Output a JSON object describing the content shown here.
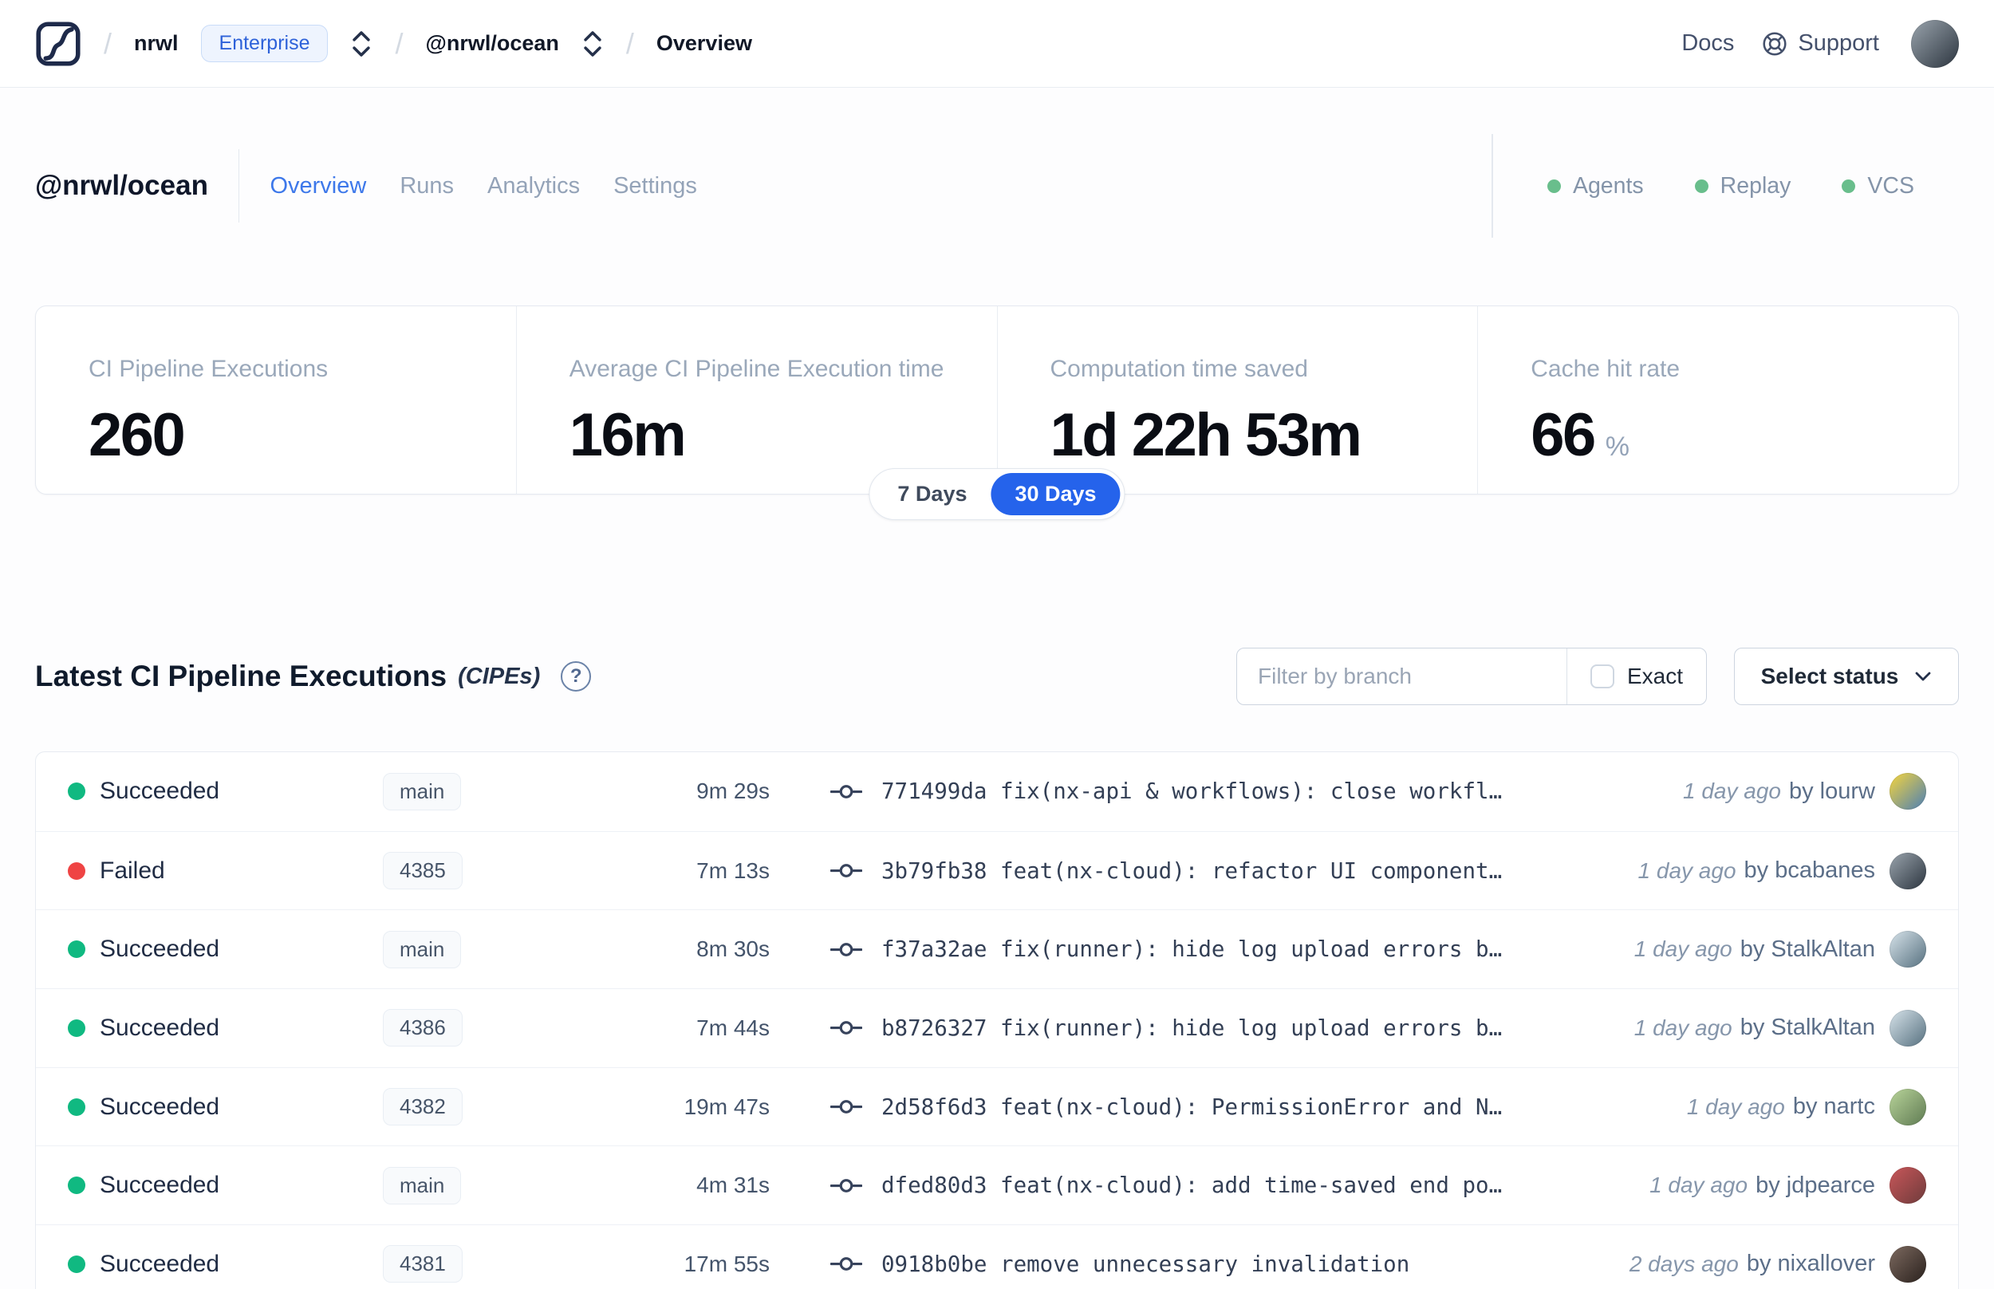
{
  "navbar": {
    "logo": "nx-cloud-logo",
    "breadcrumb": {
      "org": "nrwl",
      "org_badge": "Enterprise",
      "workspace": "@nrwl/ocean",
      "page": "Overview"
    },
    "docs_label": "Docs",
    "support_label": "Support",
    "avatar_colors": [
      "#9aa4ad",
      "#2c353f"
    ]
  },
  "header": {
    "title": "@nrwl/ocean",
    "tabs": [
      {
        "label": "Overview",
        "active": true
      },
      {
        "label": "Runs",
        "active": false
      },
      {
        "label": "Analytics",
        "active": false
      },
      {
        "label": "Settings",
        "active": false
      }
    ],
    "services": [
      {
        "label": "Agents"
      },
      {
        "label": "Replay"
      },
      {
        "label": "VCS"
      }
    ]
  },
  "stats": {
    "cards": [
      {
        "label": "CI Pipeline Executions",
        "value": "260",
        "unit": ""
      },
      {
        "label": "Average CI Pipeline Execution time",
        "value": "16m",
        "unit": ""
      },
      {
        "label": "Computation time saved",
        "value": "1d 22h 53m",
        "unit": ""
      },
      {
        "label": "Cache hit rate",
        "value": "66",
        "unit": "%"
      }
    ],
    "range_toggle": {
      "options": [
        "7 Days",
        "30 Days"
      ],
      "selected": "30 Days"
    }
  },
  "cipes": {
    "title": "Latest CI Pipeline Executions",
    "title_suffix": "(CIPEs)",
    "help_glyph": "?",
    "filter": {
      "branch_placeholder": "Filter by branch",
      "exact_label": "Exact",
      "exact_checked": false,
      "status_dropdown_label": "Select status"
    },
    "rows": [
      {
        "kind": "succeeded",
        "status": "Succeeded",
        "branch": "main",
        "duration": "9m 29s",
        "commit": "771499da fix(nx-api & workflows): close workfl…",
        "time_ago": "1 day ago",
        "author": "by lourw",
        "avatar_colors": [
          "#f6d53d",
          "#4c7fb5"
        ]
      },
      {
        "kind": "failed",
        "status": "Failed",
        "branch": "4385",
        "duration": "7m 13s",
        "commit": "3b79fb38 feat(nx-cloud): refactor UI component…",
        "time_ago": "1 day ago",
        "author": "by bcabanes",
        "avatar_colors": [
          "#9aa4ad",
          "#2c353f"
        ]
      },
      {
        "kind": "succeeded",
        "status": "Succeeded",
        "branch": "main",
        "duration": "8m 30s",
        "commit": "f37a32ae fix(runner): hide log upload errors b…",
        "time_ago": "1 day ago",
        "author": "by StalkAltan",
        "avatar_colors": [
          "#d7e3ea",
          "#56707f"
        ]
      },
      {
        "kind": "succeeded",
        "status": "Succeeded",
        "branch": "4386",
        "duration": "7m 44s",
        "commit": "b8726327 fix(runner): hide log upload errors b…",
        "time_ago": "1 day ago",
        "author": "by StalkAltan",
        "avatar_colors": [
          "#d7e3ea",
          "#56707f"
        ]
      },
      {
        "kind": "succeeded",
        "status": "Succeeded",
        "branch": "4382",
        "duration": "19m 47s",
        "commit": "2d58f6d3 feat(nx-cloud): PermissionError and N…",
        "time_ago": "1 day ago",
        "author": "by nartc",
        "avatar_colors": [
          "#b9d49a",
          "#5e7a52"
        ]
      },
      {
        "kind": "succeeded",
        "status": "Succeeded",
        "branch": "main",
        "duration": "4m 31s",
        "commit": "dfed80d3 feat(nx-cloud): add time-saved end po…",
        "time_ago": "1 day ago",
        "author": "by jdpearce",
        "avatar_colors": [
          "#c9575a",
          "#6e3b3b"
        ]
      },
      {
        "kind": "succeeded",
        "status": "Succeeded",
        "branch": "4381",
        "duration": "17m 55s",
        "commit": "0918b0be remove unnecessary invalidation",
        "time_ago": "2 days ago",
        "author": "by nixallover",
        "avatar_colors": [
          "#7d6a60",
          "#2a211d"
        ]
      }
    ]
  },
  "colors": {
    "accent_blue": "#2563eb",
    "tab_active": "#3d78ea",
    "succeeded": "#10b981",
    "failed": "#ef4444",
    "service_dot": "#69be8c"
  }
}
